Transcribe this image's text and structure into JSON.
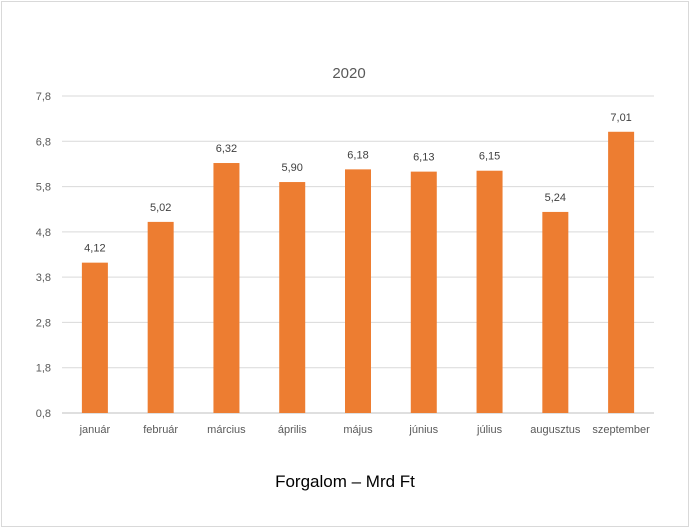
{
  "chart_data": {
    "type": "bar",
    "title": "2020",
    "categories": [
      "január",
      "február",
      "március",
      "április",
      "május",
      "június",
      "július",
      "augusztus",
      "szeptember"
    ],
    "values": [
      4.12,
      5.02,
      6.32,
      5.9,
      6.18,
      6.13,
      6.15,
      5.24,
      7.01
    ],
    "value_labels": [
      "4,12",
      "5,02",
      "6,32",
      "5,90",
      "6,18",
      "6,13",
      "6,15",
      "5,24",
      "7,01"
    ],
    "ylim": [
      0.8,
      7.8
    ],
    "yticks": [
      0.8,
      1.8,
      2.8,
      3.8,
      4.8,
      5.8,
      6.8,
      7.8
    ],
    "ytick_labels": [
      "0,8",
      "1,8",
      "2,8",
      "3,8",
      "4,8",
      "5,8",
      "6,8",
      "7,8"
    ],
    "xlabel": "",
    "ylabel": "",
    "grid": true,
    "legend": "none",
    "bar_color": "#ED7D31"
  },
  "caption": "Forgalom – Mrd Ft"
}
